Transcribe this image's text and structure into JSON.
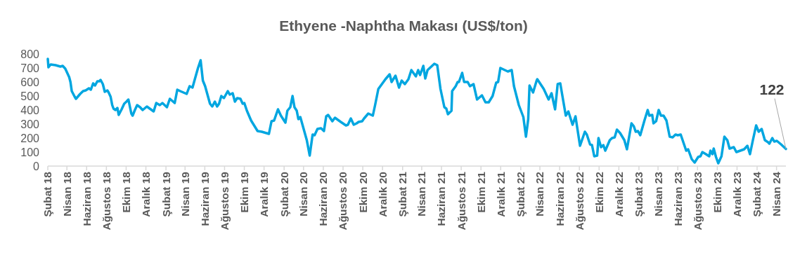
{
  "chart_data": {
    "type": "line",
    "title": "Ethyene -Naphtha Makası (US$/ton)",
    "x": [
      "2018-02-01",
      "2018-02-03",
      "2018-02-10",
      "2018-02-25",
      "2018-03-12",
      "2018-03-19",
      "2018-03-27",
      "2018-04-08",
      "2018-04-12",
      "2018-04-16",
      "2018-04-25",
      "2018-04-29",
      "2018-05-12",
      "2018-05-21",
      "2018-05-29",
      "2018-06-08",
      "2018-06-14",
      "2018-06-21",
      "2018-06-27",
      "2018-07-04",
      "2018-07-10",
      "2018-07-14",
      "2018-07-21",
      "2018-07-27",
      "2018-08-04",
      "2018-08-08",
      "2018-08-14",
      "2018-08-19",
      "2018-08-23",
      "2018-08-29",
      "2018-09-04",
      "2018-09-08",
      "2018-09-17",
      "2018-09-25",
      "2018-10-02",
      "2018-10-08",
      "2018-10-17",
      "2018-10-21",
      "2018-10-28",
      "2018-11-04",
      "2018-11-13",
      "2018-11-21",
      "2018-12-04",
      "2018-12-25",
      "2019-01-02",
      "2019-01-13",
      "2019-01-21",
      "2019-02-04",
      "2019-02-13",
      "2019-02-28",
      "2019-03-08",
      "2019-03-17",
      "2019-04-06",
      "2019-04-15",
      "2019-04-24",
      "2019-04-30",
      "2019-05-11",
      "2019-05-19",
      "2019-05-26",
      "2019-06-02",
      "2019-06-17",
      "2019-06-24",
      "2019-07-02",
      "2019-07-09",
      "2019-07-15",
      "2019-07-22",
      "2019-07-30",
      "2019-08-11",
      "2019-08-17",
      "2019-08-26",
      "2019-09-02",
      "2019-09-09",
      "2019-09-19",
      "2019-09-26",
      "2019-10-01",
      "2019-10-09",
      "2019-10-22",
      "2019-11-11",
      "2019-11-24",
      "2019-12-16",
      "2019-12-24",
      "2020-01-01",
      "2020-01-13",
      "2020-01-22",
      "2020-02-05",
      "2020-02-11",
      "2020-02-20",
      "2020-02-27",
      "2020-03-04",
      "2020-03-11",
      "2020-03-16",
      "2020-03-22",
      "2020-04-11",
      "2020-04-20",
      "2020-04-29",
      "2020-05-05",
      "2020-05-14",
      "2020-05-25",
      "2020-06-03",
      "2020-06-10",
      "2020-06-16",
      "2020-06-29",
      "2020-07-07",
      "2020-07-25",
      "2020-08-10",
      "2020-08-16",
      "2020-08-25",
      "2020-09-03",
      "2020-09-12",
      "2020-09-18",
      "2020-09-29",
      "2020-10-05",
      "2020-10-18",
      "2020-11-01",
      "2020-11-08",
      "2020-11-18",
      "2020-11-29",
      "2020-12-10",
      "2020-12-23",
      "2020-12-29",
      "2021-01-10",
      "2021-01-21",
      "2021-01-29",
      "2021-02-08",
      "2021-02-19",
      "2021-02-28",
      "2021-03-14",
      "2021-03-21",
      "2021-03-27",
      "2021-04-06",
      "2021-04-12",
      "2021-04-19",
      "2021-05-10",
      "2021-05-19",
      "2021-05-29",
      "2021-06-10",
      "2021-06-16",
      "2021-06-21",
      "2021-07-02",
      "2021-07-04",
      "2021-07-15",
      "2021-07-21",
      "2021-07-25",
      "2021-08-04",
      "2021-08-10",
      "2021-08-21",
      "2021-08-28",
      "2021-09-08",
      "2021-09-19",
      "2021-10-04",
      "2021-10-15",
      "2021-10-25",
      "2021-11-06",
      "2021-11-17",
      "2021-11-23",
      "2021-11-30",
      "2021-12-23",
      "2022-01-04",
      "2022-01-11",
      "2022-01-26",
      "2022-02-09",
      "2022-02-17",
      "2022-02-24",
      "2022-02-28",
      "2022-03-11",
      "2022-03-22",
      "2022-03-24",
      "2022-04-13",
      "2022-04-28",
      "2022-05-07",
      "2022-05-18",
      "2022-05-26",
      "2022-06-03",
      "2022-06-20",
      "2022-06-28",
      "2022-07-11",
      "2022-07-20",
      "2022-08-03",
      "2022-08-18",
      "2022-08-24",
      "2022-09-03",
      "2022-09-09",
      "2022-09-16",
      "2022-09-25",
      "2022-09-29",
      "2022-10-07",
      "2022-10-14",
      "2022-10-20",
      "2022-11-03",
      "2022-11-10",
      "2022-11-18",
      "2022-11-25",
      "2022-12-05",
      "2022-12-18",
      "2022-12-26",
      "2023-01-09",
      "2023-01-16",
      "2023-01-22",
      "2023-01-29",
      "2023-02-05",
      "2023-02-18",
      "2023-02-28",
      "2023-03-05",
      "2023-03-14",
      "2023-03-18",
      "2023-03-26",
      "2023-04-03",
      "2023-04-10",
      "2023-04-18",
      "2023-04-27",
      "2023-05-07",
      "2023-05-16",
      "2023-05-25",
      "2023-06-01",
      "2023-06-10",
      "2023-06-27",
      "2023-07-03",
      "2023-07-14",
      "2023-07-23",
      "2023-08-03",
      "2023-08-10",
      "2023-08-16",
      "2023-08-27",
      "2023-09-06",
      "2023-09-10",
      "2023-09-16",
      "2023-09-20",
      "2023-09-27",
      "2023-10-04",
      "2023-10-14",
      "2023-10-23",
      "2023-11-01",
      "2023-11-08",
      "2023-11-21",
      "2023-11-29",
      "2023-12-23",
      "2024-01-02",
      "2024-01-10",
      "2024-01-19",
      "2024-01-29",
      "2024-02-06",
      "2024-02-15",
      "2024-02-25",
      "2024-03-06",
      "2024-03-10",
      "2024-03-19",
      "2024-03-25",
      "2024-04-02",
      "2024-04-15",
      "2024-04-30"
    ],
    "series": [
      {
        "color": "#00a6e0",
        "values": [
          765,
          705,
          725,
          720,
          710,
          715,
          695,
          635,
          600,
          535,
          495,
          480,
          515,
          535,
          540,
          555,
          545,
          590,
          575,
          605,
          605,
          615,
          585,
          530,
          540,
          525,
          495,
          435,
          410,
          400,
          415,
          365,
          405,
          445,
          460,
          475,
          375,
          360,
          400,
          435,
          420,
          400,
          425,
          390,
          450,
          435,
          450,
          420,
          480,
          450,
          545,
          535,
          515,
          570,
          560,
          610,
          700,
          755,
          610,
          570,
          445,
          425,
          460,
          425,
          445,
          500,
          485,
          535,
          510,
          520,
          460,
          485,
          480,
          445,
          450,
          395,
          325,
          250,
          245,
          230,
          320,
          325,
          405,
          360,
          310,
          395,
          420,
          500,
          420,
          395,
          335,
          350,
          185,
          75,
          225,
          220,
          265,
          270,
          250,
          355,
          365,
          320,
          345,
          315,
          290,
          295,
          340,
          295,
          305,
          315,
          320,
          340,
          375,
          360,
          435,
          550,
          585,
          620,
          655,
          600,
          645,
          560,
          610,
          585,
          620,
          685,
          640,
          685,
          650,
          715,
          625,
          685,
          730,
          720,
          550,
          420,
          410,
          370,
          395,
          535,
          570,
          600,
          600,
          665,
          600,
          600,
          570,
          585,
          475,
          505,
          455,
          455,
          500,
          595,
          600,
          700,
          675,
          685,
          570,
          435,
          350,
          210,
          335,
          575,
          525,
          610,
          620,
          550,
          475,
          520,
          405,
          585,
          590,
          360,
          390,
          295,
          355,
          145,
          245,
          225,
          155,
          150,
          70,
          75,
          200,
          135,
          150,
          110,
          185,
          200,
          205,
          260,
          235,
          185,
          120,
          305,
          285,
          245,
          250,
          220,
          325,
          400,
          360,
          365,
          305,
          320,
          400,
          360,
          360,
          325,
          210,
          205,
          225,
          220,
          225,
          110,
          120,
          50,
          25,
          65,
          70,
          100,
          85,
          70,
          110,
          85,
          125,
          65,
          20,
          70,
          210,
          185,
          125,
          135,
          100,
          120,
          145,
          85,
          185,
          290,
          245,
          265,
          185,
          170,
          160,
          200,
          175,
          180,
          155,
          122
        ]
      }
    ],
    "xlim": [
      "2018-02-01",
      "2024-04-30"
    ],
    "xticks": [
      {
        "value": "2018-02-01",
        "label": "Şubat 18"
      },
      {
        "value": "2018-04-01",
        "label": "Nisan 18"
      },
      {
        "value": "2018-06-01",
        "label": "Haziran 18"
      },
      {
        "value": "2018-08-01",
        "label": "Ağustos 18"
      },
      {
        "value": "2018-10-01",
        "label": "Ekim 18"
      },
      {
        "value": "2018-12-01",
        "label": "Aralık 18"
      },
      {
        "value": "2019-02-01",
        "label": "Şubat 19"
      },
      {
        "value": "2019-04-01",
        "label": "Nisan 19"
      },
      {
        "value": "2019-06-01",
        "label": "Haziran 19"
      },
      {
        "value": "2019-08-01",
        "label": "Ağustos 19"
      },
      {
        "value": "2019-10-01",
        "label": "Ekim 19"
      },
      {
        "value": "2019-12-01",
        "label": "Aralık 19"
      },
      {
        "value": "2020-02-01",
        "label": "Şubat 20"
      },
      {
        "value": "2020-04-01",
        "label": "Nisan 20"
      },
      {
        "value": "2020-06-01",
        "label": "Haziran 20"
      },
      {
        "value": "2020-08-01",
        "label": "Ağustos 20"
      },
      {
        "value": "2020-10-01",
        "label": "Ekim 20"
      },
      {
        "value": "2020-12-01",
        "label": "Aralık 20"
      },
      {
        "value": "2021-02-01",
        "label": "Şubat 21"
      },
      {
        "value": "2021-04-01",
        "label": "Nisan 21"
      },
      {
        "value": "2021-06-01",
        "label": "Haziran 21"
      },
      {
        "value": "2021-08-01",
        "label": "Ağustos 21"
      },
      {
        "value": "2021-10-01",
        "label": "Ekim 21"
      },
      {
        "value": "2021-12-01",
        "label": "Aralık 21"
      },
      {
        "value": "2022-02-01",
        "label": "Şubat 22"
      },
      {
        "value": "2022-04-01",
        "label": "Nisan 22"
      },
      {
        "value": "2022-06-01",
        "label": "Haziran 22"
      },
      {
        "value": "2022-08-01",
        "label": "Ağustos 22"
      },
      {
        "value": "2022-10-01",
        "label": "Ekim 22"
      },
      {
        "value": "2022-12-01",
        "label": "Aralık 22"
      },
      {
        "value": "2023-02-01",
        "label": "Şubat 23"
      },
      {
        "value": "2023-04-01",
        "label": "Nisan 23"
      },
      {
        "value": "2023-06-01",
        "label": "Haziran 23"
      },
      {
        "value": "2023-08-01",
        "label": "Ağustos 23"
      },
      {
        "value": "2023-10-01",
        "label": "Ekim 23"
      },
      {
        "value": "2023-12-01",
        "label": "Aralık 23"
      },
      {
        "value": "2024-02-01",
        "label": "Şubat 24"
      },
      {
        "value": "2024-04-01",
        "label": "Nisan 24"
      }
    ],
    "ylim": [
      0,
      800
    ],
    "yticks": [
      0,
      100,
      200,
      300,
      400,
      500,
      600,
      700,
      800
    ],
    "annotations": [
      {
        "text": "122",
        "x": "2024-04-30",
        "y": 122
      }
    ]
  }
}
